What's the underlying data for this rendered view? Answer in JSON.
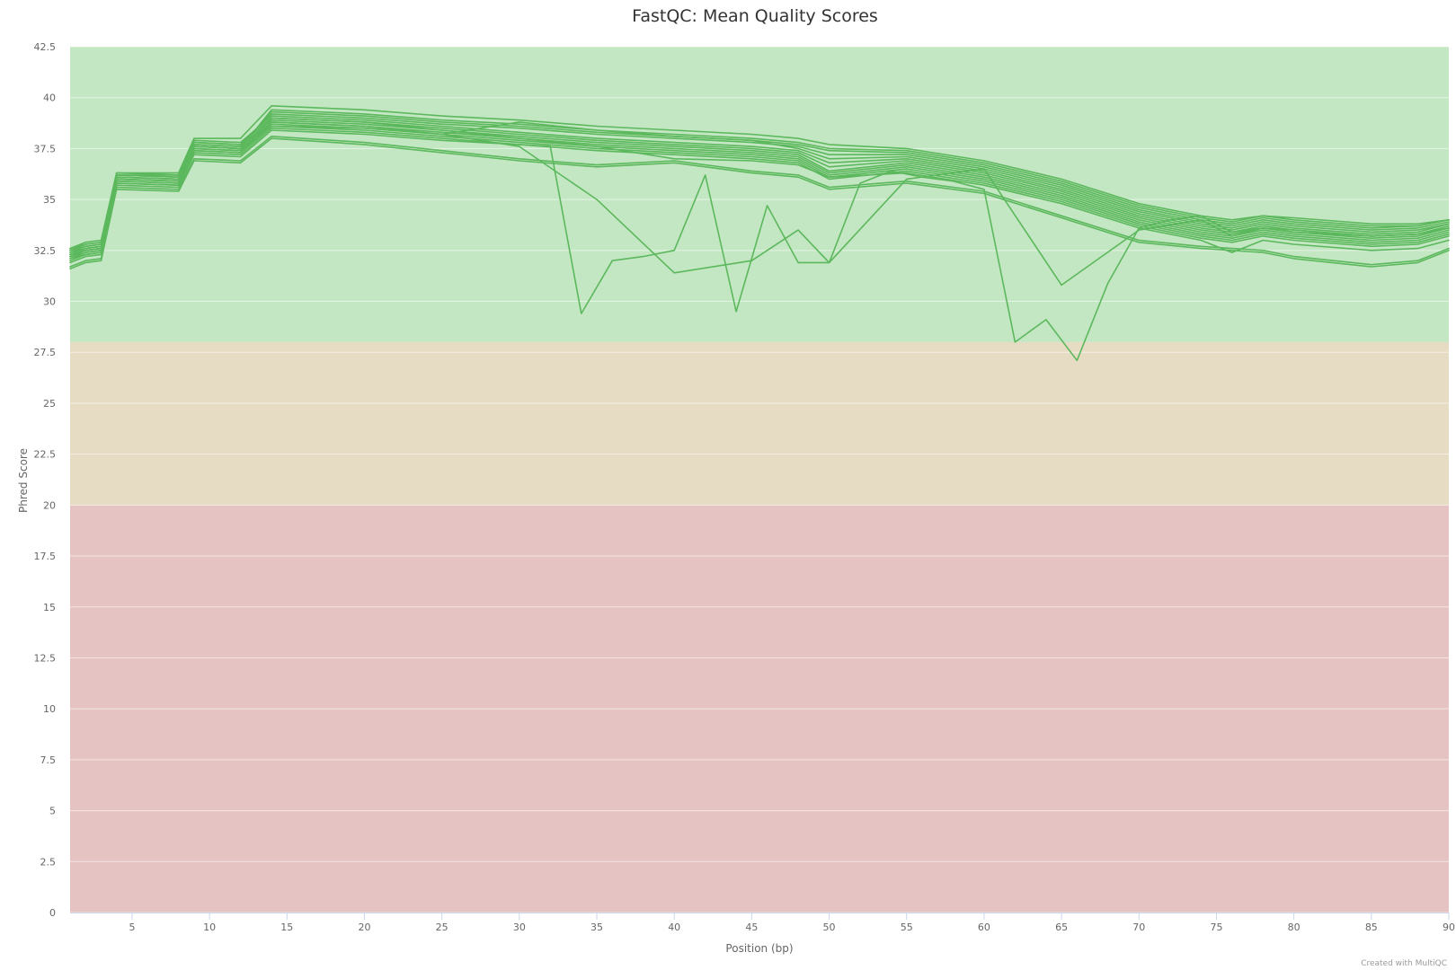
{
  "chart_data": {
    "type": "line",
    "title": "FastQC: Mean Quality Scores",
    "xlabel": "Position (bp)",
    "ylabel": "Phred Score",
    "credit": "Created with MultiQC",
    "xlim": [
      1,
      90
    ],
    "ylim": [
      0,
      42.5
    ],
    "x_ticks": [
      5,
      10,
      15,
      20,
      25,
      30,
      35,
      40,
      45,
      50,
      55,
      60,
      65,
      70,
      75,
      80,
      85,
      90
    ],
    "y_ticks": [
      0,
      2.5,
      5,
      7.5,
      10,
      12.5,
      15,
      17.5,
      20,
      22.5,
      25,
      27.5,
      30,
      32.5,
      35,
      37.5,
      40,
      42.5
    ],
    "y_tick_labels": [
      "0",
      "2.5",
      "5",
      "7.5",
      "10",
      "12.5",
      "15",
      "17.5",
      "20",
      "22.5",
      "25",
      "27.5",
      "30",
      "32.5",
      "35",
      "37.5",
      "40",
      "42.5"
    ],
    "grid": true,
    "legend": "none",
    "colors": {
      "line": "#5cb85c",
      "band_good": "#c3e6c3",
      "band_warn": "#e6dcc3",
      "band_fail": "#e6c3c3"
    },
    "bands": [
      {
        "from": 28,
        "to": 42.5,
        "status": "good"
      },
      {
        "from": 20,
        "to": 28,
        "status": "warn"
      },
      {
        "from": 0,
        "to": 20,
        "status": "fail"
      }
    ],
    "x": [
      1,
      2,
      3,
      4,
      8,
      9,
      12,
      14,
      20,
      25,
      30,
      35,
      40,
      45,
      48,
      50,
      55,
      60,
      65,
      70,
      74,
      76,
      78,
      80,
      85,
      88,
      90
    ],
    "series": [
      {
        "values": [
          31.6,
          31.9,
          32.0,
          35.5,
          35.4,
          36.9,
          36.8,
          38.0,
          37.7,
          37.3,
          36.9,
          36.6,
          36.8,
          36.3,
          36.1,
          35.5,
          35.8,
          35.3,
          34.1,
          32.9,
          32.6,
          32.5,
          32.4,
          32.1,
          31.7,
          31.9,
          32.5
        ]
      },
      {
        "values": [
          31.7,
          32.0,
          32.1,
          35.6,
          35.5,
          37.0,
          36.9,
          38.1,
          37.8,
          37.4,
          37.0,
          36.7,
          36.9,
          36.4,
          36.2,
          35.6,
          35.9,
          35.4,
          34.2,
          33.0,
          32.7,
          32.6,
          32.5,
          32.2,
          31.8,
          32.0,
          32.6
        ]
      },
      {
        "values": [
          32.0,
          32.3,
          32.4,
          35.8,
          35.7,
          37.3,
          37.2,
          38.5,
          38.3,
          38.0,
          37.7,
          37.4,
          37.2,
          37.0,
          36.8,
          36.0,
          36.4,
          35.8,
          34.9,
          33.7,
          33.1,
          32.9,
          33.2,
          33.0,
          32.7,
          32.8,
          33.2
        ]
      },
      {
        "values": [
          32.1,
          32.4,
          32.5,
          35.9,
          35.8,
          37.4,
          37.3,
          38.6,
          38.4,
          38.1,
          37.8,
          37.5,
          37.3,
          37.1,
          36.9,
          36.1,
          36.5,
          35.9,
          35.0,
          33.8,
          33.2,
          33.0,
          33.3,
          33.1,
          32.8,
          32.9,
          33.3
        ]
      },
      {
        "values": [
          32.2,
          32.5,
          32.6,
          36.0,
          35.9,
          37.5,
          37.4,
          38.7,
          38.5,
          38.2,
          37.9,
          37.6,
          37.4,
          37.2,
          37.0,
          36.2,
          36.6,
          36.0,
          35.1,
          33.9,
          33.3,
          33.1,
          33.4,
          33.2,
          32.9,
          33.0,
          33.4
        ]
      },
      {
        "values": [
          32.3,
          32.6,
          32.7,
          36.1,
          36.0,
          37.6,
          37.5,
          38.8,
          38.6,
          38.3,
          38.0,
          37.7,
          37.5,
          37.3,
          37.1,
          36.3,
          36.7,
          36.1,
          35.2,
          34.0,
          33.4,
          33.2,
          33.5,
          33.3,
          33.0,
          33.1,
          33.5
        ]
      },
      {
        "values": [
          32.4,
          32.7,
          32.8,
          36.2,
          36.1,
          37.7,
          37.6,
          38.9,
          38.7,
          38.4,
          38.1,
          37.8,
          37.6,
          37.4,
          37.2,
          36.4,
          36.8,
          36.2,
          35.3,
          34.1,
          33.5,
          33.3,
          33.6,
          33.4,
          33.1,
          33.2,
          33.6
        ]
      },
      {
        "values": [
          32.5,
          32.8,
          32.9,
          36.2,
          36.2,
          37.8,
          37.7,
          39.0,
          38.8,
          38.5,
          38.2,
          37.9,
          37.7,
          37.5,
          37.3,
          36.6,
          36.9,
          36.3,
          35.4,
          34.2,
          33.6,
          33.4,
          33.7,
          33.5,
          33.2,
          33.3,
          33.7
        ]
      },
      {
        "values": [
          32.6,
          32.8,
          32.9,
          36.3,
          36.2,
          37.9,
          37.8,
          39.1,
          38.9,
          38.6,
          38.3,
          38.0,
          37.8,
          37.6,
          37.4,
          36.8,
          37.0,
          36.4,
          35.5,
          34.3,
          33.7,
          33.5,
          33.8,
          33.6,
          33.3,
          33.4,
          33.8
        ]
      },
      {
        "values": [
          32.5,
          32.7,
          32.8,
          36.2,
          36.1,
          37.8,
          37.7,
          39.2,
          39.0,
          38.7,
          38.5,
          38.2,
          38.0,
          37.8,
          37.6,
          37.2,
          37.2,
          36.6,
          35.7,
          34.5,
          33.9,
          33.7,
          34.0,
          33.8,
          33.5,
          33.6,
          33.9
        ]
      },
      {
        "values": [
          32.4,
          32.6,
          32.7,
          36.1,
          36.0,
          37.7,
          37.6,
          39.3,
          39.1,
          38.8,
          38.6,
          38.3,
          38.1,
          37.9,
          37.7,
          37.4,
          37.3,
          36.7,
          35.8,
          34.6,
          34.0,
          33.8,
          34.1,
          33.9,
          33.6,
          33.7,
          34.0
        ]
      },
      {
        "values": [
          32.3,
          32.5,
          32.6,
          36.0,
          35.9,
          37.6,
          37.5,
          39.4,
          39.2,
          38.9,
          38.7,
          38.4,
          38.2,
          38.0,
          37.8,
          37.5,
          37.4,
          36.8,
          35.9,
          34.7,
          34.1,
          33.9,
          34.2,
          34.0,
          33.7,
          33.7,
          34.0
        ]
      },
      {
        "values": [
          32.6,
          32.9,
          33.0,
          36.3,
          36.3,
          38.0,
          38.0,
          39.6,
          39.4,
          39.1,
          38.9,
          38.6,
          38.4,
          38.2,
          38.0,
          37.7,
          37.5,
          36.9,
          36.0,
          34.8,
          34.2,
          34.0,
          34.2,
          34.1,
          33.8,
          33.8,
          34.0
        ]
      },
      {
        "values": [
          32.2,
          32.4,
          32.5,
          35.9,
          35.8,
          37.5,
          37.4,
          39.0,
          38.8,
          38.4,
          38.0,
          37.6,
          37.0,
          36.9,
          36.7,
          36.1,
          36.3,
          35.7,
          34.8,
          33.6,
          33.0,
          32.4,
          33.0,
          32.8,
          32.5,
          32.6,
          33.0
        ]
      },
      {
        "values": [
          32.3,
          32.5,
          32.6,
          36.0,
          35.9,
          37.6,
          37.5,
          38.6,
          38.5,
          38.2,
          38.8,
          38.4,
          38.1,
          37.9,
          37.5,
          37.0,
          37.1,
          36.5,
          35.6,
          34.4,
          33.8,
          33.6,
          33.9,
          33.7,
          33.4,
          33.5,
          33.8
        ]
      },
      {
        "values": [
          32.1,
          32.3,
          32.4,
          35.8,
          35.7,
          37.4,
          37.3,
          38.8,
          38.6,
          38.2,
          37.6,
          35.0,
          31.4,
          32.0,
          33.5,
          31.9,
          36.0,
          36.5,
          30.8,
          33.5,
          34.0,
          33.2,
          33.6,
          33.4,
          33.2,
          33.3,
          33.6
        ]
      }
    ],
    "outlier": {
      "x": [
        1,
        2,
        3,
        4,
        8,
        9,
        12,
        14,
        20,
        25,
        30,
        32,
        34,
        36,
        38,
        40,
        42,
        44,
        46,
        48,
        50,
        52,
        54,
        56,
        58,
        60,
        62,
        64,
        66,
        68,
        70,
        72,
        74,
        76,
        78,
        80,
        85,
        88,
        90
      ],
      "values": [
        31.9,
        32.2,
        32.3,
        35.7,
        35.6,
        37.2,
        37.1,
        38.4,
        38.2,
        37.9,
        37.7,
        37.6,
        29.4,
        32.0,
        32.2,
        32.5,
        36.2,
        29.5,
        34.7,
        31.9,
        31.9,
        35.8,
        36.4,
        36.1,
        35.9,
        35.5,
        28.0,
        29.1,
        27.1,
        30.9,
        33.6,
        34.0,
        34.2,
        33.4,
        33.6,
        33.5,
        33.2,
        33.3,
        33.6
      ]
    }
  }
}
